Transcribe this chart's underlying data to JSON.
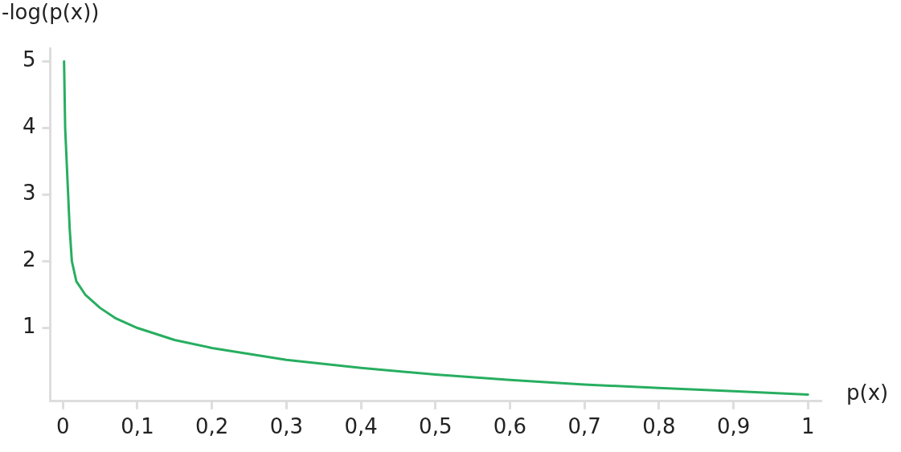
{
  "chart_data": {
    "type": "line",
    "xlabel": "p(x)",
    "ylabel": "-log(p(x))",
    "xlim": [
      -0.017,
      1.017
    ],
    "ylim": [
      -0.1,
      5.2
    ],
    "xticks": [
      {
        "value": 0,
        "label": "0"
      },
      {
        "value": 0.1,
        "label": "0,1"
      },
      {
        "value": 0.2,
        "label": "0,2"
      },
      {
        "value": 0.3,
        "label": "0,3"
      },
      {
        "value": 0.4,
        "label": "0,4"
      },
      {
        "value": 0.5,
        "label": "0,5"
      },
      {
        "value": 0.6,
        "label": "0,6"
      },
      {
        "value": 0.7,
        "label": "0,7"
      },
      {
        "value": 0.8,
        "label": "0,8"
      },
      {
        "value": 0.9,
        "label": "0,9"
      },
      1
    ],
    "yticks": [
      1,
      2,
      3,
      4,
      5
    ],
    "marker": "none",
    "series": [
      {
        "color": "#27ae60",
        "x": [
          0.0015,
          0.003,
          0.007,
          0.009,
          0.012,
          0.018,
          0.03,
          0.05,
          0.07,
          0.1,
          0.15,
          0.2,
          0.3,
          0.4,
          0.5,
          0.6,
          0.7,
          0.8,
          0.9,
          1
        ],
        "values": [
          5,
          4,
          3,
          2.5,
          2,
          1.7,
          1.5,
          1.3,
          1.15,
          1,
          0.82,
          0.7,
          0.52,
          0.4,
          0.3,
          0.22,
          0.15,
          0.1,
          0.05,
          0
        ]
      }
    ]
  }
}
